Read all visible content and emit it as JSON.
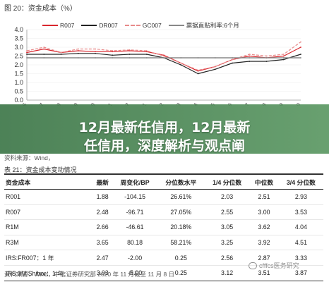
{
  "figure": {
    "title": "图 20：资金成本（%）",
    "source": "资料来源：Wind，",
    "legend": [
      {
        "name": "R007",
        "color": "#d9272e",
        "style": "solid"
      },
      {
        "name": "DR007",
        "color": "#222222",
        "style": "solid"
      },
      {
        "name": "GC007",
        "color": "#e88a8a",
        "style": "dashed"
      },
      {
        "name": "票据直贴利率:6个月",
        "color": "#888888",
        "style": "solid"
      }
    ]
  },
  "overlay": {
    "line1": "12月最新任信用，12月最新",
    "line2": "任信用，深度解析与观点阐"
  },
  "chart_data": {
    "type": "line",
    "ylim": [
      0.0,
      4.0
    ],
    "yticks": [
      "0.0",
      "0.5",
      "1.0",
      "1.5",
      "2.0",
      "2.5",
      "3.0",
      "3.5",
      "4.0"
    ],
    "x": [
      "2019-06",
      "2019-07",
      "2019-08",
      "2019-09",
      "2019-10",
      "2019-11",
      "2019-12",
      "2020-01",
      "2020-02",
      "2020-03",
      "2020-04",
      "2020-05",
      "2020-06",
      "2020-07",
      "2020-08",
      "2020-09",
      "2020-10"
    ],
    "series": [
      {
        "name": "R007",
        "color": "#d9272e",
        "values": [
          2.7,
          2.9,
          2.7,
          2.8,
          2.75,
          2.75,
          2.8,
          2.75,
          2.55,
          2.1,
          1.65,
          1.9,
          2.3,
          2.5,
          2.4,
          2.5,
          3.0
        ]
      },
      {
        "name": "DR007",
        "color": "#222222",
        "values": [
          2.6,
          2.6,
          2.6,
          2.65,
          2.65,
          2.55,
          2.6,
          2.6,
          2.4,
          2.0,
          1.5,
          1.75,
          2.1,
          2.2,
          2.2,
          2.3,
          2.6
        ]
      },
      {
        "name": "GC007",
        "color": "#e88a8a",
        "values": [
          2.8,
          3.0,
          2.7,
          2.9,
          2.9,
          2.8,
          2.85,
          2.8,
          2.5,
          2.1,
          1.7,
          1.9,
          2.3,
          2.6,
          2.5,
          2.6,
          3.3
        ]
      },
      {
        "name": "票据直贴利率:6个月",
        "color": "#888888",
        "values": [
          2.4,
          2.4,
          2.4,
          2.4,
          2.4,
          2.4,
          2.4,
          2.4,
          2.4,
          2.4,
          2.4,
          2.4,
          2.4,
          2.4,
          2.4,
          2.4,
          2.4
        ]
      }
    ]
  },
  "table": {
    "title": "表 21：资金成本变动情况",
    "headers": [
      "资金成本",
      "最新",
      "周变化/BP",
      "分位数水平",
      "1/4 分位数",
      "中位数",
      "3/4 分位数"
    ],
    "rows": [
      [
        "R001",
        "1.88",
        "-104.15",
        "26.61%",
        "2.03",
        "2.51",
        "2.93"
      ],
      [
        "R007",
        "2.48",
        "-96.71",
        "27.05%",
        "2.55",
        "3.00",
        "3.53"
      ],
      [
        "R1M",
        "2.66",
        "-46.61",
        "20.18%",
        "3.05",
        "3.62",
        "4.04"
      ],
      [
        "R3M",
        "3.65",
        "80.18",
        "58.21%",
        "3.25",
        "3.92",
        "4.51"
      ],
      [
        "IRS:FR007：1 年",
        "2.47",
        "-2.00",
        "0.25",
        "2.56",
        "2.87",
        "3.33"
      ],
      [
        "IRS:3M Shibor：1 年",
        "3.03",
        "-5.00",
        "0.25",
        "3.12",
        "3.51",
        "3.87"
      ]
    ],
    "source": "资料来源：Wind，中信证券研究部 2020 年 11 月截至 11 月 8 日"
  },
  "watermark": "cfffcs医务研究"
}
